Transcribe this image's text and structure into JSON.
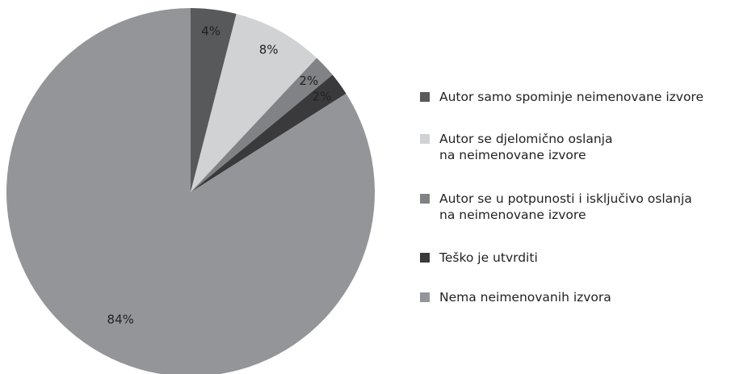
{
  "chart_data": {
    "type": "pie",
    "categories": [
      "Autor samo spominje neimenovane izvore",
      "Autor se djelomično oslanja\nna neimenovane izvore",
      "Autor se u potpunosti i isključivo oslanja\nna neimenovane izvore",
      "Teško je utvrditi",
      "Nema neimenovanih izvora"
    ],
    "values": [
      4,
      8,
      2,
      2,
      84
    ],
    "value_labels": [
      "4%",
      "8%",
      "2%",
      "2%",
      "84%"
    ],
    "colors": [
      "#58595b",
      "#d1d2d4",
      "#808285",
      "#3a3a3c",
      "#939598"
    ],
    "legend": "right"
  }
}
